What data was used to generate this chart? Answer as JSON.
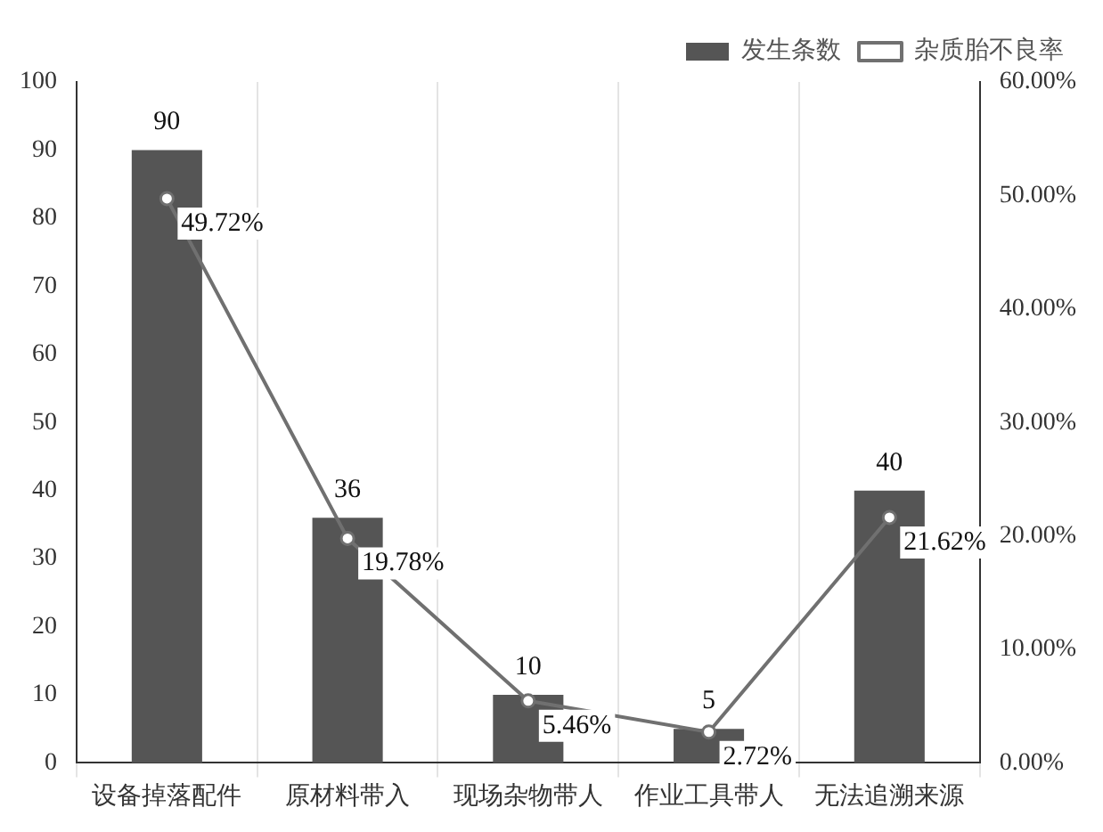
{
  "chart_data": {
    "type": "bar",
    "categories": [
      "设备掉落配件",
      "原材料带入",
      "现场杂物带人",
      "作业工具带人",
      "无法追溯来源"
    ],
    "series": [
      {
        "name": "发生条数",
        "color": "#555555",
        "values": [
          90,
          36,
          10,
          5,
          40
        ],
        "value_labels": [
          "90",
          "36",
          "10",
          "5",
          "40"
        ]
      },
      {
        "name": "杂质胎不良率",
        "type": "line",
        "axis": "y2",
        "color": "#707070",
        "values": [
          49.72,
          19.78,
          5.46,
          2.72,
          21.62
        ],
        "value_labels": [
          "49.72%",
          "19.78%",
          "5.46%",
          "2.72%",
          "21.62%"
        ],
        "marker": "circle"
      }
    ],
    "ylim": [
      0,
      100
    ],
    "yticks": [
      0,
      10,
      20,
      30,
      40,
      50,
      60,
      70,
      80,
      90,
      100
    ],
    "y2lim": [
      0,
      60
    ],
    "y2ticks": [
      {
        "value": 0,
        "label": "0.00%"
      },
      {
        "value": 10,
        "label": "10.00%"
      },
      {
        "value": 20,
        "label": "20.00%"
      },
      {
        "value": 30,
        "label": "30.00%"
      },
      {
        "value": 40,
        "label": "40.00%"
      },
      {
        "value": 50,
        "label": "50.00%"
      },
      {
        "value": 60,
        "label": "60.00%"
      }
    ],
    "grid": "x",
    "legend": "top right"
  }
}
